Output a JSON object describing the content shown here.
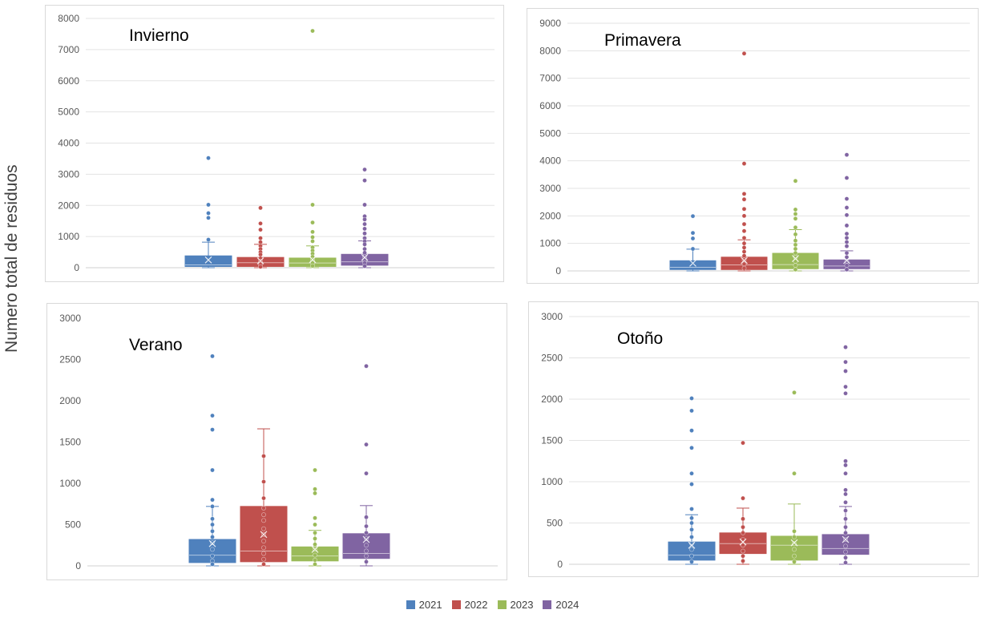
{
  "ylabel": "Numero total de residuos",
  "legend": {
    "items": [
      {
        "label": "2021",
        "color": "#4f81bd"
      },
      {
        "label": "2022",
        "color": "#c0504d"
      },
      {
        "label": "2023",
        "color": "#9bbb59"
      },
      {
        "label": "2024",
        "color": "#8064a2"
      }
    ]
  },
  "chart_data": [
    {
      "type": "box",
      "title": "Invierno",
      "ylim": [
        0,
        8000
      ],
      "yticks": [
        0,
        1000,
        2000,
        3000,
        4000,
        5000,
        6000,
        7000,
        8000
      ],
      "grid": true,
      "series": [
        {
          "name": "2021",
          "color": "#4f81bd",
          "min": 0,
          "q1": 40,
          "median": 90,
          "q3": 380,
          "max": 820,
          "mean": 250,
          "points": [
            3520,
            2020,
            1750,
            1600,
            900
          ]
        },
        {
          "name": "2022",
          "color": "#c0504d",
          "min": 0,
          "q1": 40,
          "median": 160,
          "q3": 330,
          "max": 750,
          "mean": 220,
          "points": [
            1920,
            1420,
            1220,
            950,
            820,
            700,
            600,
            500,
            420,
            300,
            200,
            100,
            30
          ]
        },
        {
          "name": "2023",
          "color": "#9bbb59",
          "min": 0,
          "q1": 40,
          "median": 150,
          "q3": 310,
          "max": 700,
          "mean": 260,
          "points": [
            7600,
            2020,
            1450,
            1150,
            980,
            850,
            650,
            550,
            450,
            350,
            250,
            150,
            60
          ]
        },
        {
          "name": "2024",
          "color": "#8064a2",
          "min": 0,
          "q1": 80,
          "median": 190,
          "q3": 430,
          "max": 860,
          "mean": 330,
          "points": [
            3150,
            2800,
            2020,
            1650,
            1550,
            1400,
            1250,
            1100,
            950,
            850,
            750,
            600,
            480,
            350,
            250,
            150,
            50
          ]
        }
      ]
    },
    {
      "type": "box",
      "title": "Primavera",
      "ylim": [
        0,
        9000
      ],
      "yticks": [
        0,
        1000,
        2000,
        3000,
        4000,
        5000,
        6000,
        7000,
        8000,
        9000
      ],
      "grid": true,
      "series": [
        {
          "name": "2021",
          "color": "#4f81bd",
          "min": 0,
          "q1": 50,
          "median": 130,
          "q3": 370,
          "max": 790,
          "mean": 280,
          "points": [
            1990,
            1380,
            1180,
            800
          ]
        },
        {
          "name": "2022",
          "color": "#c0504d",
          "min": 0,
          "q1": 50,
          "median": 220,
          "q3": 500,
          "max": 1130,
          "mean": 380,
          "points": [
            7900,
            3900,
            2800,
            2600,
            2250,
            2000,
            1700,
            1450,
            1200,
            1000,
            850,
            700,
            550,
            400,
            250,
            100
          ]
        },
        {
          "name": "2023",
          "color": "#9bbb59",
          "min": 0,
          "q1": 80,
          "median": 230,
          "q3": 640,
          "max": 1500,
          "mean": 450,
          "points": [
            3270,
            2230,
            2070,
            1900,
            1580,
            1330,
            1100,
            950,
            800,
            650,
            500,
            350,
            200,
            50
          ]
        },
        {
          "name": "2024",
          "color": "#8064a2",
          "min": 0,
          "q1": 80,
          "median": 180,
          "q3": 400,
          "max": 730,
          "mean": 380,
          "points": [
            4220,
            3380,
            2620,
            2300,
            2030,
            1650,
            1350,
            1200,
            1050,
            900,
            650,
            500,
            350,
            200,
            50
          ]
        }
      ]
    },
    {
      "type": "box",
      "title": "Verano",
      "ylim": [
        0,
        3000
      ],
      "yticks": [
        0,
        500,
        1000,
        1500,
        2000,
        2500,
        3000
      ],
      "grid": false,
      "series": [
        {
          "name": "2021",
          "color": "#4f81bd",
          "min": 0,
          "q1": 40,
          "median": 130,
          "q3": 320,
          "max": 720,
          "mean": 270,
          "points": [
            2540,
            1820,
            1650,
            1160,
            800,
            720,
            570,
            500,
            420,
            350,
            280,
            200,
            120,
            60,
            20
          ]
        },
        {
          "name": "2022",
          "color": "#c0504d",
          "min": 0,
          "q1": 50,
          "median": 180,
          "q3": 720,
          "max": 1660,
          "mean": 380,
          "points": [
            1330,
            1020,
            820,
            700,
            620,
            550,
            450,
            380,
            300,
            220,
            150,
            80,
            20
          ]
        },
        {
          "name": "2023",
          "color": "#9bbb59",
          "min": 0,
          "q1": 60,
          "median": 120,
          "q3": 230,
          "max": 430,
          "mean": 200,
          "points": [
            1160,
            930,
            880,
            580,
            500,
            400,
            330,
            260,
            200,
            130,
            70,
            20
          ]
        },
        {
          "name": "2024",
          "color": "#8064a2",
          "min": 0,
          "q1": 90,
          "median": 150,
          "q3": 390,
          "max": 730,
          "mean": 320,
          "points": [
            2420,
            1470,
            1120,
            590,
            480,
            400,
            330,
            250,
            180,
            120,
            50
          ]
        }
      ]
    },
    {
      "type": "box",
      "title": "Otoño",
      "ylim": [
        0,
        3000
      ],
      "yticks": [
        0,
        500,
        1000,
        1500,
        2000,
        2500,
        3000
      ],
      "grid": true,
      "series": [
        {
          "name": "2021",
          "color": "#4f81bd",
          "min": 0,
          "q1": 50,
          "median": 110,
          "q3": 270,
          "max": 600,
          "mean": 230,
          "points": [
            2010,
            1860,
            1620,
            1410,
            1100,
            970,
            670,
            560,
            500,
            420,
            330,
            250,
            180,
            100,
            30
          ]
        },
        {
          "name": "2022",
          "color": "#c0504d",
          "min": 0,
          "q1": 130,
          "median": 250,
          "q3": 380,
          "max": 680,
          "mean": 270,
          "points": [
            1470,
            800,
            550,
            450,
            380,
            300,
            230,
            160,
            100,
            40
          ]
        },
        {
          "name": "2023",
          "color": "#9bbb59",
          "min": 0,
          "q1": 50,
          "median": 230,
          "q3": 340,
          "max": 730,
          "mean": 260,
          "points": [
            2080,
            1100,
            400,
            330,
            250,
            180,
            100,
            30
          ]
        },
        {
          "name": "2024",
          "color": "#8064a2",
          "min": 0,
          "q1": 120,
          "median": 190,
          "q3": 360,
          "max": 700,
          "mean": 300,
          "points": [
            2630,
            2450,
            2340,
            2150,
            2070,
            1250,
            1200,
            1100,
            900,
            850,
            750,
            650,
            550,
            450,
            380,
            300,
            220,
            150,
            80,
            20
          ]
        }
      ]
    }
  ]
}
